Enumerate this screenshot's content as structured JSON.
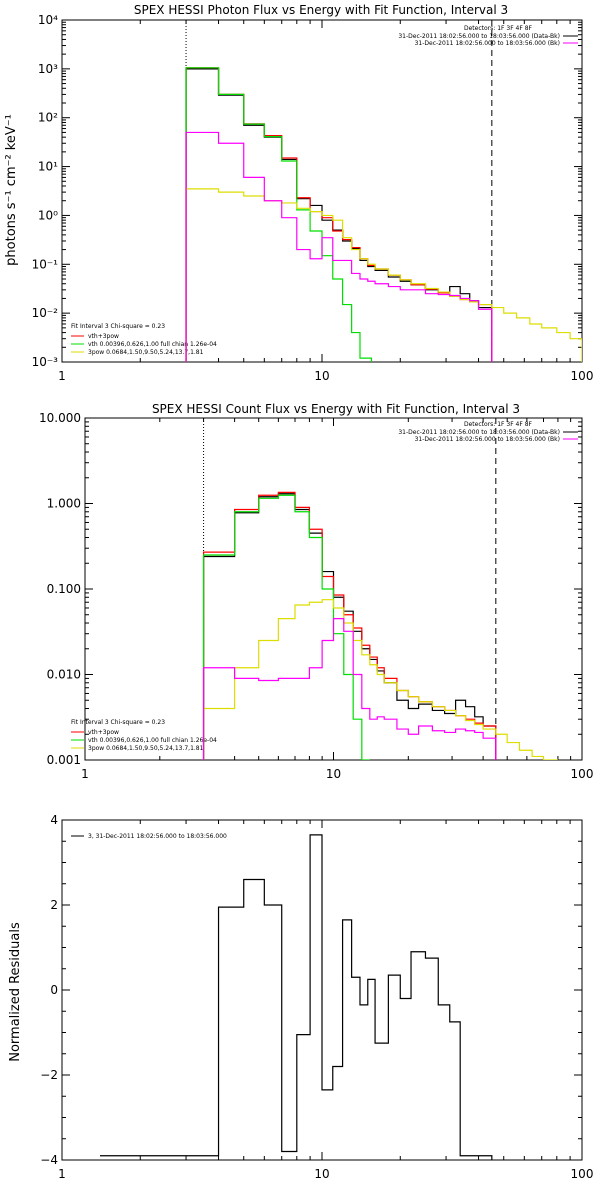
{
  "colors": {
    "data": "#000000",
    "total": "#ff0000",
    "vth": "#00dd00",
    "pow": "#dddd00",
    "bk": "#ff00ff",
    "background": "#ffffff"
  },
  "chart_data": [
    {
      "type": "line",
      "title": "SPEX HESSI Photon Flux vs Energy with Fit Function, Interval 3",
      "ylabel": "photons s⁻¹ cm⁻² keV⁻¹",
      "xscale": "log",
      "yscale": "log",
      "xlim": [
        1,
        100
      ],
      "ylim": [
        0.001,
        10000
      ],
      "xticks": [
        1,
        10,
        100
      ],
      "xticklabels": [
        "1",
        "10",
        "100"
      ],
      "yticks": [
        0.001,
        0.01,
        0.1,
        1,
        10,
        100,
        1000,
        10000
      ],
      "yticklabels": [
        "10⁻³",
        "10⁻²",
        "10⁻¹",
        "10⁰",
        "10¹",
        "10²",
        "10³",
        "10⁴"
      ],
      "vlines": [
        {
          "x": 3,
          "style": "dotted"
        },
        {
          "x": 45,
          "style": "dashed"
        }
      ],
      "header_lines": [
        "Detectors: 1F 3F 4F 8F",
        "31-Dec-2011 18:02:56.000 to 18:03:56.000 (Data-Bk)",
        "31-Dec-2011 18:02:56.000 to 18:03:56.000 (Bk)"
      ],
      "fit_info": [
        "Fit Interval 3    Chi-square = 0.23"
      ],
      "legend": [
        {
          "label": "vth+3pow",
          "color": "#ff0000"
        },
        {
          "label": "vth 0.00396,0.626,1.00  full chian 1.26e-04",
          "color": "#00dd00"
        },
        {
          "label": "3pow 0.0684,1.50,9.50,5.24,13.7,1.81",
          "color": "#dddd00"
        }
      ],
      "legend_position": "bottom-left",
      "series": [
        {
          "key": "data",
          "color": "#000000",
          "edges": [
            3,
            4,
            5,
            6,
            7,
            8,
            9,
            10,
            11,
            12,
            13,
            14,
            15,
            16,
            18,
            20,
            22,
            25,
            28,
            31,
            34,
            37,
            40,
            45
          ],
          "values": [
            1000,
            290,
            70,
            40,
            14,
            2.2,
            1.6,
            0.8,
            0.5,
            0.3,
            0.21,
            0.12,
            0.09,
            0.075,
            0.055,
            0.045,
            0.038,
            0.03,
            0.027,
            0.035,
            0.025,
            0.018,
            0.013
          ]
        },
        {
          "key": "total",
          "color": "#ff0000",
          "edges": [
            3,
            4,
            5,
            6,
            7,
            8,
            9,
            10,
            11,
            12,
            13,
            14,
            15,
            16,
            18,
            20,
            22,
            25,
            28,
            31,
            34,
            37,
            40,
            45
          ],
          "values": [
            1050,
            300,
            75,
            43,
            15,
            2.3,
            1.2,
            0.9,
            0.48,
            0.32,
            0.22,
            0.13,
            0.095,
            0.08,
            0.06,
            0.048,
            0.038,
            0.031,
            0.026,
            0.022,
            0.019,
            0.017,
            0.015
          ]
        },
        {
          "key": "vth",
          "color": "#00dd00",
          "edges": [
            3,
            4,
            5,
            6,
            7,
            8,
            9,
            10,
            11,
            12,
            13,
            14,
            15.5
          ],
          "values": [
            1050,
            300,
            74,
            41,
            13,
            1.3,
            0.48,
            0.15,
            0.05,
            0.015,
            0.004,
            0.0012
          ]
        },
        {
          "key": "pow",
          "color": "#dddd00",
          "edges": [
            3,
            4,
            5,
            6,
            7,
            8,
            9,
            10,
            11,
            12,
            13,
            14,
            15,
            16,
            18,
            20,
            22,
            25,
            28,
            31,
            34,
            37,
            40,
            45,
            50,
            56,
            63,
            70,
            80,
            90,
            100
          ],
          "values": [
            3.5,
            3,
            2.5,
            2,
            1.8,
            1.4,
            1.2,
            1,
            0.8,
            0.35,
            0.2,
            0.13,
            0.1,
            0.08,
            0.06,
            0.048,
            0.04,
            0.032,
            0.027,
            0.022,
            0.019,
            0.017,
            0.015,
            0.013,
            0.01,
            0.008,
            0.006,
            0.005,
            0.004,
            0.003
          ]
        },
        {
          "key": "bk",
          "color": "#ff00ff",
          "edges": [
            3,
            4,
            5,
            6,
            7,
            8,
            9,
            10,
            11,
            12,
            13,
            14,
            15,
            16,
            18,
            20,
            22,
            25,
            28,
            31,
            34,
            37,
            40,
            45
          ],
          "values": [
            50,
            30,
            6,
            2,
            0.9,
            0.2,
            0.13,
            0.35,
            0.12,
            0.12,
            0.065,
            0.05,
            0.045,
            0.04,
            0.035,
            0.03,
            0.03,
            0.025,
            0.024,
            0.023,
            0.02,
            0.018,
            0.012
          ]
        }
      ]
    },
    {
      "type": "line",
      "title": "SPEX HESSI Count Flux vs Energy with Fit Function, Interval 3",
      "xscale": "log",
      "yscale": "log",
      "xlim": [
        1,
        100
      ],
      "ylim": [
        0.001,
        10
      ],
      "xticks": [
        1,
        10,
        100
      ],
      "xticklabels": [
        "1",
        "10",
        "100"
      ],
      "yticks": [
        0.001,
        0.01,
        0.1,
        1,
        10
      ],
      "yticklabels": [
        "0.001",
        "0.010",
        "0.100",
        "1.000",
        "10.000"
      ],
      "vlines": [
        {
          "x": 3,
          "style": "dotted"
        },
        {
          "x": 45,
          "style": "dashed"
        }
      ],
      "header_lines": [
        "Detectors: 1F 3F 4F 8F",
        "31-Dec-2011 18:02:56.000 to 18:03:56.000 (Data-Bk)",
        "31-Dec-2011 18:02:56.000 to 18:03:56.000 (Bk)"
      ],
      "fit_info": [
        "Fit Interval 3    Chi-square = 0.23"
      ],
      "legend": [
        {
          "label": "vth+3pow",
          "color": "#ff0000"
        },
        {
          "label": "vth 0.00396,0.626,1.00  full chian 1.26e-04",
          "color": "#00dd00"
        },
        {
          "label": "3pow 0.0684,1.50,9.50,5.24,13.7,1.81",
          "color": "#dddd00"
        }
      ],
      "legend_position": "bottom-left",
      "series": [
        {
          "key": "data",
          "color": "#000000",
          "edges": [
            3,
            4,
            5,
            6,
            7,
            8,
            9,
            10,
            11,
            12,
            13,
            14,
            15,
            16,
            18,
            20,
            22,
            25,
            28,
            31,
            34,
            37,
            40,
            45
          ],
          "values": [
            0.24,
            0.78,
            1.2,
            1.3,
            0.85,
            0.45,
            0.16,
            0.08,
            0.055,
            0.032,
            0.02,
            0.015,
            0.011,
            0.008,
            0.005,
            0.004,
            0.0045,
            0.0038,
            0.0035,
            0.005,
            0.0042,
            0.0032,
            0.0025
          ]
        },
        {
          "key": "total",
          "color": "#ff0000",
          "edges": [
            3,
            4,
            5,
            6,
            7,
            8,
            9,
            10,
            11,
            12,
            13,
            14,
            15,
            16,
            18,
            20,
            22,
            25,
            28,
            31,
            34,
            37,
            40,
            45
          ],
          "values": [
            0.27,
            0.85,
            1.25,
            1.35,
            0.9,
            0.5,
            0.14,
            0.085,
            0.05,
            0.035,
            0.022,
            0.016,
            0.012,
            0.009,
            0.0065,
            0.0055,
            0.0048,
            0.0042,
            0.0038,
            0.0033,
            0.003,
            0.0027,
            0.0025
          ]
        },
        {
          "key": "vth",
          "color": "#00dd00",
          "edges": [
            3,
            4,
            5,
            6,
            7,
            8,
            9,
            10,
            11,
            12,
            13,
            14
          ],
          "values": [
            0.25,
            0.8,
            1.15,
            1.25,
            0.8,
            0.4,
            0.1,
            0.03,
            0.01,
            0.003,
            0.001
          ]
        },
        {
          "key": "pow",
          "color": "#dddd00",
          "edges": [
            3,
            4,
            5,
            6,
            7,
            8,
            9,
            10,
            11,
            12,
            13,
            14,
            15,
            16,
            18,
            20,
            22,
            25,
            28,
            31,
            34,
            37,
            40,
            45,
            50,
            56,
            63,
            70,
            80
          ],
          "values": [
            0.004,
            0.012,
            0.025,
            0.045,
            0.065,
            0.07,
            0.075,
            0.06,
            0.04,
            0.025,
            0.017,
            0.013,
            0.01,
            0.008,
            0.0065,
            0.0055,
            0.0048,
            0.0042,
            0.0038,
            0.0033,
            0.0029,
            0.0026,
            0.0023,
            0.002,
            0.0016,
            0.0013,
            0.0011,
            0.001
          ]
        },
        {
          "key": "bk",
          "color": "#ff00ff",
          "edges": [
            3,
            4,
            5,
            6,
            7,
            8,
            9,
            10,
            11,
            12,
            13,
            14,
            15,
            16,
            18,
            20,
            22,
            25,
            28,
            31,
            34,
            37,
            40,
            45
          ],
          "values": [
            0.012,
            0.009,
            0.0085,
            0.009,
            0.009,
            0.012,
            0.025,
            0.045,
            0.032,
            0.01,
            0.004,
            0.003,
            0.0032,
            0.003,
            0.0023,
            0.002,
            0.0025,
            0.0022,
            0.0021,
            0.0023,
            0.0022,
            0.0021,
            0.0018
          ]
        }
      ]
    },
    {
      "type": "line",
      "ylabel": "Normalized Residuals",
      "xscale": "log",
      "yscale": "linear",
      "xlim": [
        1,
        100
      ],
      "ylim": [
        -4,
        4
      ],
      "xticks": [
        1,
        10,
        100
      ],
      "xticklabels": [
        "1",
        "10",
        "100"
      ],
      "yticks": [
        -4,
        -2,
        0,
        2,
        4
      ],
      "yticklabels": [
        "−4",
        "−2",
        "0",
        "2",
        "4"
      ],
      "legend": [
        {
          "label": "3, 31-Dec-2011 18:02:56.000 to 18:03:56.000",
          "color": "#000000"
        }
      ],
      "legend_position": "top-left",
      "series": [
        {
          "key": "data",
          "color": "#000000",
          "edges": [
            3,
            4,
            5,
            6,
            7,
            8,
            9,
            10,
            11,
            12,
            13,
            14,
            15,
            16,
            18,
            20,
            22,
            25,
            28,
            31,
            34,
            37,
            40,
            45
          ],
          "values": [
            -3.9,
            1.95,
            2.6,
            2.0,
            -3.8,
            -1.05,
            3.65,
            -2.35,
            -1.8,
            1.65,
            0.3,
            -0.35,
            0.25,
            -1.25,
            0.35,
            -0.2,
            0.9,
            0.75,
            -0.35,
            -0.75,
            -3.9,
            -3.9,
            -3.9
          ],
          "draw_to": 45,
          "tail_drop": -4,
          "start_x": 1.4
        }
      ]
    }
  ]
}
